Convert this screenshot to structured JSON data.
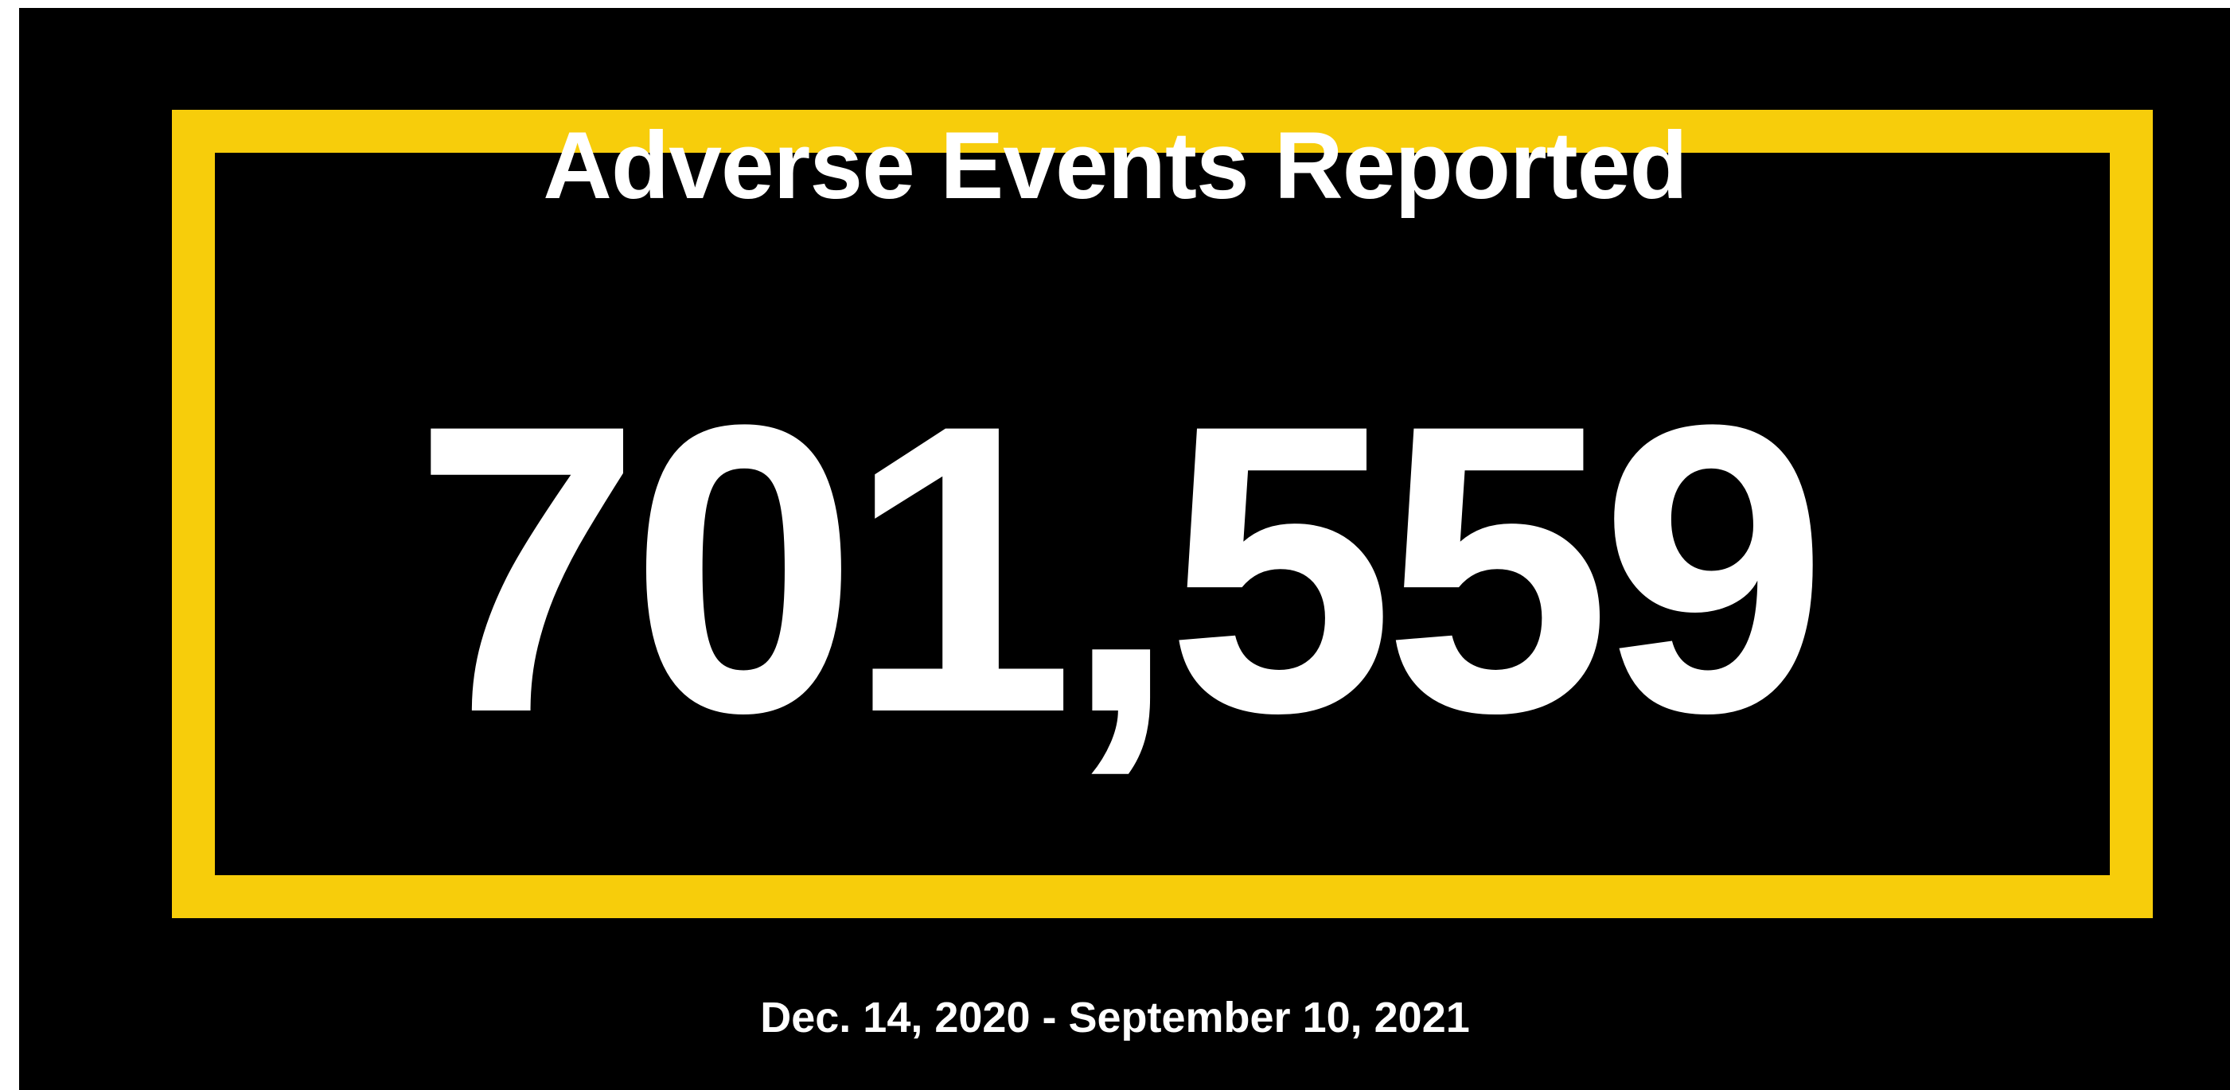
{
  "title": "Adverse Events Reported",
  "count": "701,559",
  "date_range": "Dec. 14, 2020 - September 10, 2021",
  "colors": {
    "background": "#000000",
    "frame_border": "#f7cd0b",
    "text": "#ffffff"
  }
}
